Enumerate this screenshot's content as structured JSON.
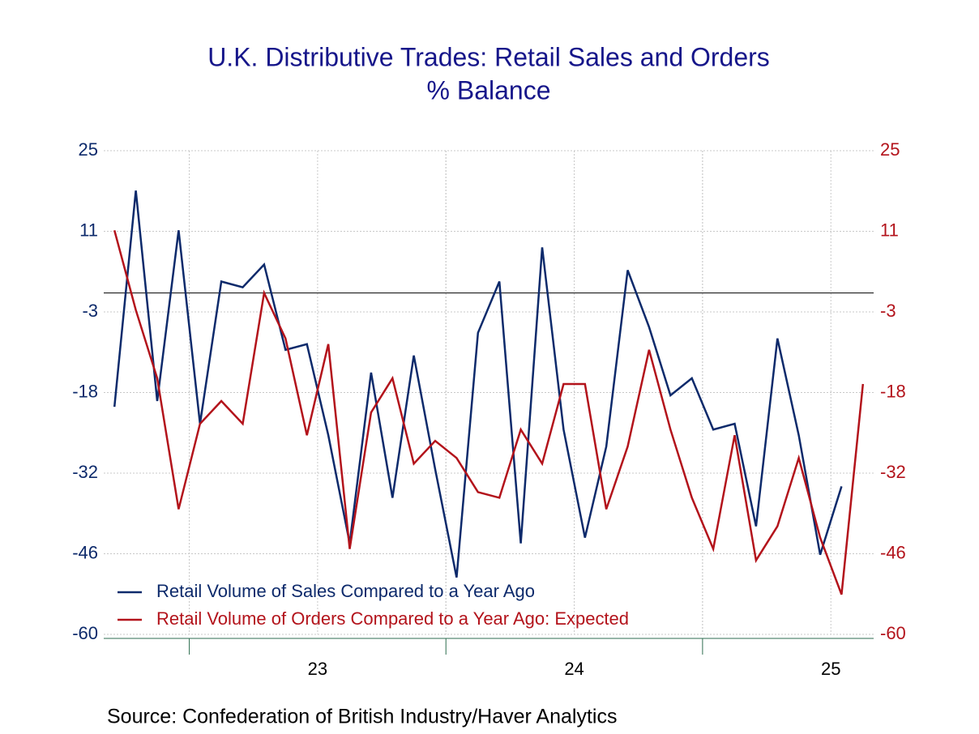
{
  "chart_data": {
    "type": "line",
    "title": "U.K. Distributive Trades: Retail Sales and Orders",
    "subtitle": "% Balance",
    "source": "Source:  Confederation of British Industry/Haver Analytics",
    "x": [
      "2022-09",
      "2022-10",
      "2022-11",
      "2022-12",
      "2023-01",
      "2023-02",
      "2023-03",
      "2023-04",
      "2023-05",
      "2023-06",
      "2023-07",
      "2023-08",
      "2023-09",
      "2023-10",
      "2023-11",
      "2023-12",
      "2024-01",
      "2024-02",
      "2024-03",
      "2024-04",
      "2024-05",
      "2024-06",
      "2024-07",
      "2024-08",
      "2024-09",
      "2024-10",
      "2024-11",
      "2024-12",
      "2025-01",
      "2025-02",
      "2025-03",
      "2025-04",
      "2025-05",
      "2025-06",
      "2025-07",
      "2025-08"
    ],
    "series": [
      {
        "name": "Retail Volume of Sales Compared to a Year Ago",
        "color": "#0d2a6b",
        "values": [
          -20,
          18,
          -19,
          11,
          -23,
          2,
          1,
          5,
          -10,
          -9,
          -25,
          -44,
          -14,
          -36,
          -11,
          -31,
          -50,
          -7,
          2,
          -44,
          8,
          -24,
          -43,
          -27,
          4,
          -6,
          -18,
          -15,
          -24,
          -23,
          -41,
          -8,
          -25,
          -46,
          -34,
          null
        ]
      },
      {
        "name": "Retail Volume of Orders Compared to a Year Ago: Expected",
        "color": "#b3131b",
        "axis": "y2",
        "values": [
          11,
          -3,
          -15,
          -38,
          -23,
          -19,
          -23,
          0,
          -8,
          -25,
          -9,
          -45,
          -21,
          -15,
          -30,
          -26,
          -29,
          -35,
          -36,
          -24,
          -30,
          -16,
          -16,
          -38,
          -27,
          -10,
          -24,
          -36,
          -45,
          -25,
          -47,
          -41,
          -29,
          -43,
          -53,
          -16
        ]
      }
    ],
    "xlim": [
      "2022-09",
      "2025-09"
    ],
    "xticks": [
      {
        "value": "2023",
        "label": "23"
      },
      {
        "value": "2024",
        "label": "24"
      },
      {
        "value": "2025",
        "label": "25"
      }
    ],
    "ylim": [
      -60,
      25
    ],
    "yticks": [
      {
        "value": 25,
        "label": "25"
      },
      {
        "value": 10.833,
        "label": "11"
      },
      {
        "value": -3.333,
        "label": "-3"
      },
      {
        "value": -17.5,
        "label": "-18"
      },
      {
        "value": -31.667,
        "label": "-32"
      },
      {
        "value": -45.833,
        "label": "-46"
      },
      {
        "value": -60,
        "label": "-60"
      }
    ],
    "y2lim": [
      -60,
      25
    ],
    "y2ticks": [
      {
        "value": 25,
        "label": "25"
      },
      {
        "value": 10.833,
        "label": "11"
      },
      {
        "value": -3.333,
        "label": "-3"
      },
      {
        "value": -17.5,
        "label": "-18"
      },
      {
        "value": -31.667,
        "label": "-32"
      },
      {
        "value": -45.833,
        "label": "-46"
      },
      {
        "value": -60,
        "label": "-60"
      }
    ],
    "grid": true,
    "zero_line": true,
    "legend": "lower left"
  }
}
